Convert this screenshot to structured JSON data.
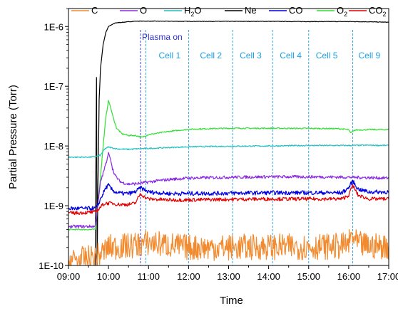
{
  "chart_data": {
    "type": "line",
    "xlabel": "Time",
    "ylabel": "Partial Pressure (Torr)",
    "xlim": [
      "09:00",
      "17:00"
    ],
    "ylim": [
      1e-10,
      2e-06
    ],
    "yscale": "log",
    "x_ticks": [
      "09:00",
      "10:00",
      "11:00",
      "12:00",
      "13:00",
      "14:00",
      "15:00",
      "16:00",
      "17:00"
    ],
    "y_ticks": [
      "1E-10",
      "1E-9",
      "1E-8",
      "1E-7",
      "1E-6"
    ],
    "legend_position": "top",
    "legend": [
      {
        "name": "C",
        "color": "#f28b30"
      },
      {
        "name": "O",
        "color": "#8a2be2"
      },
      {
        "name": "H₂O",
        "name_main": "H",
        "name_sub": "2",
        "name_tail": "O",
        "color": "#20c0c0"
      },
      {
        "name": "Ne",
        "color": "#000000"
      },
      {
        "name": "CO",
        "color": "#0000e0"
      },
      {
        "name": "O₂",
        "name_main": "O",
        "name_sub": "2",
        "name_tail": "",
        "color": "#30e030"
      },
      {
        "name": "CO₂",
        "name_main": "CO",
        "name_sub": "2",
        "name_tail": "",
        "color": "#e00000"
      }
    ],
    "annotations": [
      {
        "text": "Plasma on",
        "x": "10:48",
        "color": "#3030d0",
        "line_color": "#3030d0"
      },
      {
        "text": "Cell 1",
        "x": "10:56",
        "color": "#1ea0e0",
        "line_color": "#1ea0e0"
      },
      {
        "text": "Cell 2",
        "x": "12:00",
        "color": "#1ea0e0",
        "line_color": "#1ea0e0"
      },
      {
        "text": "Cell 3",
        "x": "13:06",
        "color": "#1ea0e0",
        "line_color": "#1ea0e0"
      },
      {
        "text": "Cell 4",
        "x": "14:06",
        "color": "#1ea0e0",
        "line_color": "#1ea0e0"
      },
      {
        "text": "Cell 5",
        "x": "15:00",
        "color": "#1ea0e0",
        "line_color": "#1ea0e0"
      },
      {
        "text": "Cell 9",
        "x": "16:06",
        "color": "#1ea0e0",
        "line_color": "#1ea0e0"
      }
    ],
    "series": [
      {
        "name": "Ne",
        "color": "#000000",
        "x": [
          "09:00",
          "09:30",
          "09:36",
          "09:40",
          "09:42",
          "09:43",
          "09:44",
          "09:45",
          "09:46",
          "09:48",
          "09:52",
          "09:56",
          "10:00",
          "10:10",
          "10:30",
          "10:40",
          "11:00",
          "12:00",
          "13:00",
          "14:00",
          "15:00",
          "16:00",
          "16:30",
          "17:00"
        ],
        "y": [
          8e-11,
          8e-11,
          8e-11,
          1e-10,
          1.4e-07,
          8e-11,
          2e-09,
          8e-09,
          6e-08,
          2e-07,
          5e-07,
          8e-07,
          1e-06,
          1.15e-06,
          1.2e-06,
          1.23e-06,
          1.23e-06,
          1.22e-06,
          1.22e-06,
          1.22e-06,
          1.21e-06,
          1.21e-06,
          1.2e-06,
          1.18e-06
        ]
      },
      {
        "name": "O₂",
        "color": "#30e030",
        "x": [
          "09:00",
          "09:40",
          "09:44",
          "09:48",
          "09:52",
          "09:56",
          "10:00",
          "10:03",
          "10:07",
          "10:12",
          "10:20",
          "10:30",
          "10:40",
          "10:50",
          "11:00",
          "11:30",
          "12:00",
          "12:30",
          "13:00",
          "14:00",
          "15:00",
          "15:45",
          "16:00",
          "16:03",
          "16:10",
          "16:30",
          "17:00"
        ],
        "y": [
          4e-10,
          4e-10,
          1e-09,
          3e-09,
          1e-08,
          3e-08,
          5.8e-08,
          4.5e-08,
          3e-08,
          2e-08,
          1.6e-08,
          1.5e-08,
          1.5e-08,
          1.4e-08,
          1.55e-08,
          1.75e-08,
          1.9e-08,
          1.95e-08,
          1.98e-08,
          1.98e-08,
          1.97e-08,
          1.95e-08,
          1.88e-08,
          1.65e-08,
          1.85e-08,
          1.88e-08,
          1.88e-08
        ]
      },
      {
        "name": "H₂O",
        "color": "#20c0c0",
        "x": [
          "09:00",
          "09:30",
          "09:40",
          "09:44",
          "09:48",
          "09:52",
          "09:56",
          "10:00",
          "10:05",
          "10:15",
          "10:30",
          "10:45",
          "11:00",
          "11:30",
          "12:00",
          "13:00",
          "14:00",
          "15:00",
          "16:00",
          "16:30",
          "17:00"
        ],
        "y": [
          6.5e-09,
          6.5e-09,
          6.6e-09,
          6.8e-09,
          7e-09,
          8.2e-09,
          9.2e-09,
          9.6e-09,
          9.3e-09,
          8.9e-09,
          8.8e-09,
          9e-09,
          9.1e-09,
          9.4e-09,
          9.7e-09,
          9.9e-09,
          1e-08,
          1.02e-08,
          1.02e-08,
          1.03e-08,
          1.02e-08
        ]
      },
      {
        "name": "O",
        "color": "#8a2be2",
        "x": [
          "09:00",
          "09:40",
          "09:44",
          "09:48",
          "09:52",
          "09:56",
          "10:00",
          "10:03",
          "10:06",
          "10:10",
          "10:15",
          "10:20",
          "10:30",
          "10:45",
          "11:00",
          "11:30",
          "12:00",
          "13:00",
          "14:00",
          "15:00",
          "16:00",
          "16:30",
          "17:00"
        ],
        "y": [
          4.5e-10,
          4.5e-10,
          1e-09,
          2.5e-09,
          3.5e-09,
          5e-09,
          7.8e-09,
          6e-09,
          4.2e-09,
          3.2e-09,
          2.7e-09,
          2.45e-09,
          2.3e-09,
          2.35e-09,
          2.5e-09,
          2.75e-09,
          2.9e-09,
          3e-09,
          3.05e-09,
          3.05e-09,
          3e-09,
          2.95e-09,
          2.9e-09
        ]
      },
      {
        "name": "CO",
        "color": "#0000e0",
        "x": [
          "09:00",
          "09:40",
          "09:44",
          "09:48",
          "09:52",
          "09:56",
          "10:00",
          "10:04",
          "10:10",
          "10:20",
          "10:30",
          "10:40",
          "10:48",
          "10:54",
          "11:00",
          "11:30",
          "12:00",
          "13:00",
          "14:00",
          "15:00",
          "15:50",
          "16:00",
          "16:06",
          "16:14",
          "16:30",
          "17:00"
        ],
        "y": [
          9e-10,
          9e-10,
          1e-09,
          1.3e-09,
          1.6e-09,
          2e-09,
          2.2e-09,
          1.9e-09,
          1.7e-09,
          1.6e-09,
          1.6e-09,
          1.7e-09,
          2e-09,
          1.85e-09,
          1.7e-09,
          1.6e-09,
          1.6e-09,
          1.62e-09,
          1.65e-09,
          1.65e-09,
          1.65e-09,
          2e-09,
          2.6e-09,
          1.9e-09,
          1.7e-09,
          1.7e-09
        ]
      },
      {
        "name": "CO₂",
        "color": "#e00000",
        "x": [
          "09:00",
          "09:40",
          "09:44",
          "09:48",
          "09:52",
          "09:56",
          "10:00",
          "10:05",
          "10:15",
          "10:30",
          "10:40",
          "10:48",
          "10:54",
          "11:00",
          "11:30",
          "12:00",
          "13:00",
          "14:00",
          "15:00",
          "15:50",
          "16:00",
          "16:06",
          "16:14",
          "16:30",
          "17:00"
        ],
        "y": [
          7.5e-10,
          7.8e-10,
          8.5e-10,
          9.5e-10,
          1.05e-09,
          1.1e-09,
          1.1e-09,
          1.1e-09,
          1.05e-09,
          1.05e-09,
          1.1e-09,
          1.6e-09,
          1.4e-09,
          1.3e-09,
          1.25e-09,
          1.25e-09,
          1.28e-09,
          1.3e-09,
          1.3e-09,
          1.3e-09,
          1.5e-09,
          2.2e-09,
          1.5e-09,
          1.3e-09,
          1.3e-09
        ]
      },
      {
        "name": "C",
        "color": "#f28b30",
        "x": [
          "09:00",
          "09:20",
          "09:40",
          "09:50",
          "10:00",
          "10:10",
          "10:30",
          "10:50",
          "11:00",
          "11:30",
          "12:00",
          "13:00",
          "14:00",
          "15:00",
          "15:50",
          "16:00",
          "16:05",
          "16:12",
          "16:30",
          "17:00"
        ],
        "y": [
          1.2e-10,
          1.25e-10,
          1.35e-10,
          1.6e-10,
          2e-10,
          2.05e-10,
          2.1e-10,
          2.3e-10,
          2.4e-10,
          2.2e-10,
          2e-10,
          2e-10,
          2.05e-10,
          2.05e-10,
          2.1e-10,
          2.3e-10,
          3.2e-10,
          2.3e-10,
          2.1e-10,
          2.1e-10
        ]
      }
    ]
  }
}
